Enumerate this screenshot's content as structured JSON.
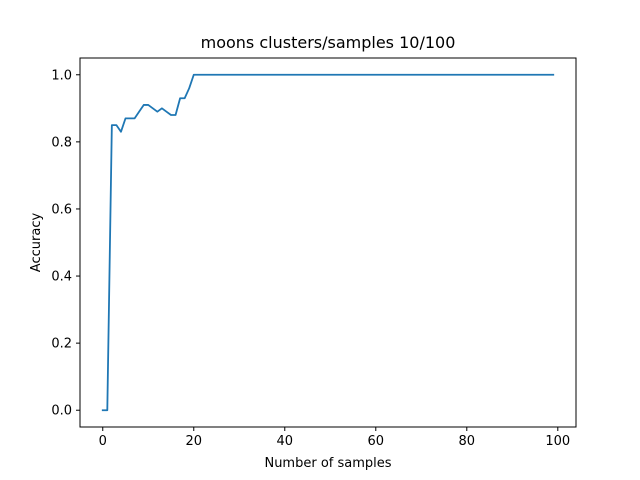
{
  "chart_data": {
    "type": "line",
    "title": "moons clusters/samples 10/100",
    "xlabel": "Number of samples",
    "ylabel": "Accuracy",
    "xlim": [
      -5,
      104
    ],
    "ylim": [
      -0.05,
      1.05
    ],
    "xticks": [
      0,
      20,
      40,
      60,
      80,
      100
    ],
    "xtick_labels": [
      "0",
      "20",
      "40",
      "60",
      "80",
      "100"
    ],
    "yticks": [
      0.0,
      0.2,
      0.4,
      0.6,
      0.8,
      1.0
    ],
    "ytick_labels": [
      "0.0",
      "0.2",
      "0.4",
      "0.6",
      "0.8",
      "1.0"
    ],
    "grid": false,
    "series": [
      {
        "color": "#1f77b4",
        "x": [
          0,
          1,
          2,
          3,
          4,
          5,
          6,
          7,
          8,
          9,
          10,
          11,
          12,
          13,
          14,
          15,
          16,
          17,
          18,
          19,
          20,
          99
        ],
        "y": [
          0.0,
          0.0,
          0.85,
          0.85,
          0.83,
          0.87,
          0.87,
          0.87,
          0.89,
          0.91,
          0.91,
          0.9,
          0.89,
          0.9,
          0.89,
          0.88,
          0.88,
          0.93,
          0.93,
          0.96,
          1.0,
          1.0
        ]
      }
    ]
  }
}
